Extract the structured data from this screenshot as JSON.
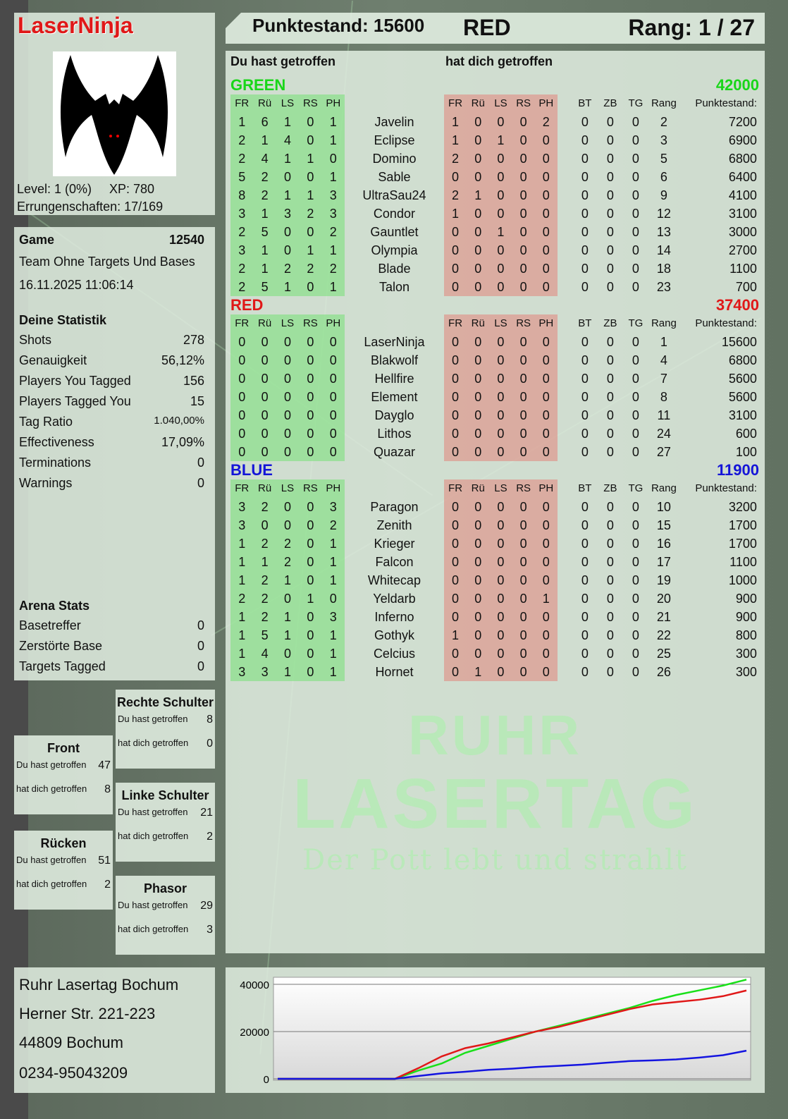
{
  "header": {
    "player": "LaserNinja",
    "score_label": "Punktestand: 15600",
    "team": "RED",
    "rank_label": "Rang: 1 / 27"
  },
  "profile": {
    "avatar": "bat-icon",
    "level": "Level: 1 (0%)",
    "xp": "XP: 780",
    "achievements": "Errungenschaften: 17/169"
  },
  "game": {
    "label": "Game",
    "id": "12540",
    "mode": "Team Ohne Targets Und Bases",
    "datetime": "16.11.2025 11:06:14"
  },
  "stats": {
    "title": "Deine Statistik",
    "items": [
      {
        "label": "Shots",
        "value": "278"
      },
      {
        "label": "Genauigkeit",
        "value": "56,12%"
      },
      {
        "label": "Players You Tagged",
        "value": "156"
      },
      {
        "label": "Players Tagged You",
        "value": "15"
      },
      {
        "label": "Tag Ratio",
        "value": "1.040,00%"
      },
      {
        "label": "Effectiveness",
        "value": "17,09%"
      },
      {
        "label": "Terminations",
        "value": "0"
      },
      {
        "label": "Warnings",
        "value": "0"
      }
    ]
  },
  "arena": {
    "title": "Arena Stats",
    "items": [
      {
        "label": "Basetreffer",
        "value": "0"
      },
      {
        "label": "Zerstörte Base",
        "value": "0"
      },
      {
        "label": "Targets Tagged",
        "value": "0"
      }
    ]
  },
  "hits": {
    "you_hit": "Du hast getroffen",
    "hit_you": "hat dich getroffen",
    "zones": [
      {
        "name": "Rechte Schulter",
        "you_hit": "8",
        "hit_you": "0"
      },
      {
        "name": "Front",
        "you_hit": "47",
        "hit_you": "8"
      },
      {
        "name": "Linke Schulter",
        "you_hit": "21",
        "hit_you": "2"
      },
      {
        "name": "Rücken",
        "you_hit": "51",
        "hit_you": "2"
      },
      {
        "name": "Phasor",
        "you_hit": "29",
        "hit_you": "3"
      }
    ]
  },
  "address": {
    "lines": [
      "Ruhr Lasertag Bochum",
      "Herner Str. 221-223",
      "44809 Bochum",
      "0234-95043209"
    ]
  },
  "logo": {
    "line1": "RUHR",
    "line2": "LASERTAG",
    "tagline": "Der Pott lebt und strahlt"
  },
  "table": {
    "you_hit_title": "Du hast getroffen",
    "hit_you_title": "hat dich getroffen",
    "columns": [
      "FR",
      "Rü",
      "LS",
      "RS",
      "PH",
      "",
      "FR",
      "Rü",
      "LS",
      "RS",
      "PH",
      "",
      "BT",
      "ZB",
      "TG",
      "Rang",
      "Punktestand:"
    ],
    "teams": [
      {
        "name": "GREEN",
        "score": "42000",
        "color": "#19d619",
        "rows": [
          [
            "1",
            "6",
            "1",
            "0",
            "1",
            "Javelin",
            "1",
            "0",
            "0",
            "0",
            "2",
            "0",
            "0",
            "0",
            "2",
            "7200"
          ],
          [
            "2",
            "1",
            "4",
            "0",
            "1",
            "Eclipse",
            "1",
            "0",
            "1",
            "0",
            "0",
            "0",
            "0",
            "0",
            "3",
            "6900"
          ],
          [
            "2",
            "4",
            "1",
            "1",
            "0",
            "Domino",
            "2",
            "0",
            "0",
            "0",
            "0",
            "0",
            "0",
            "0",
            "5",
            "6800"
          ],
          [
            "5",
            "2",
            "0",
            "0",
            "1",
            "Sable",
            "0",
            "0",
            "0",
            "0",
            "0",
            "0",
            "0",
            "0",
            "6",
            "6400"
          ],
          [
            "8",
            "2",
            "1",
            "1",
            "3",
            "UltraSau24",
            "2",
            "1",
            "0",
            "0",
            "0",
            "0",
            "0",
            "0",
            "9",
            "4100"
          ],
          [
            "3",
            "1",
            "3",
            "2",
            "3",
            "Condor",
            "1",
            "0",
            "0",
            "0",
            "0",
            "0",
            "0",
            "0",
            "12",
            "3100"
          ],
          [
            "2",
            "5",
            "0",
            "0",
            "2",
            "Gauntlet",
            "0",
            "0",
            "1",
            "0",
            "0",
            "0",
            "0",
            "0",
            "13",
            "3000"
          ],
          [
            "3",
            "1",
            "0",
            "1",
            "1",
            "Olympia",
            "0",
            "0",
            "0",
            "0",
            "0",
            "0",
            "0",
            "0",
            "14",
            "2700"
          ],
          [
            "2",
            "1",
            "2",
            "2",
            "2",
            "Blade",
            "0",
            "0",
            "0",
            "0",
            "0",
            "0",
            "0",
            "0",
            "18",
            "1100"
          ],
          [
            "2",
            "5",
            "1",
            "0",
            "1",
            "Talon",
            "0",
            "0",
            "0",
            "0",
            "0",
            "0",
            "0",
            "0",
            "23",
            "700"
          ]
        ]
      },
      {
        "name": "RED",
        "score": "37400",
        "color": "#e01818",
        "rows": [
          [
            "0",
            "0",
            "0",
            "0",
            "0",
            "LaserNinja",
            "0",
            "0",
            "0",
            "0",
            "0",
            "0",
            "0",
            "0",
            "1",
            "15600"
          ],
          [
            "0",
            "0",
            "0",
            "0",
            "0",
            "Blakwolf",
            "0",
            "0",
            "0",
            "0",
            "0",
            "0",
            "0",
            "0",
            "4",
            "6800"
          ],
          [
            "0",
            "0",
            "0",
            "0",
            "0",
            "Hellfire",
            "0",
            "0",
            "0",
            "0",
            "0",
            "0",
            "0",
            "0",
            "7",
            "5600"
          ],
          [
            "0",
            "0",
            "0",
            "0",
            "0",
            "Element",
            "0",
            "0",
            "0",
            "0",
            "0",
            "0",
            "0",
            "0",
            "8",
            "5600"
          ],
          [
            "0",
            "0",
            "0",
            "0",
            "0",
            "Dayglo",
            "0",
            "0",
            "0",
            "0",
            "0",
            "0",
            "0",
            "0",
            "11",
            "3100"
          ],
          [
            "0",
            "0",
            "0",
            "0",
            "0",
            "Lithos",
            "0",
            "0",
            "0",
            "0",
            "0",
            "0",
            "0",
            "0",
            "24",
            "600"
          ],
          [
            "0",
            "0",
            "0",
            "0",
            "0",
            "Quazar",
            "0",
            "0",
            "0",
            "0",
            "0",
            "0",
            "0",
            "0",
            "27",
            "100"
          ]
        ]
      },
      {
        "name": "BLUE",
        "score": "11900",
        "color": "#1414d8",
        "rows": [
          [
            "3",
            "2",
            "0",
            "0",
            "3",
            "Paragon",
            "0",
            "0",
            "0",
            "0",
            "0",
            "0",
            "0",
            "0",
            "10",
            "3200"
          ],
          [
            "3",
            "0",
            "0",
            "0",
            "2",
            "Zenith",
            "0",
            "0",
            "0",
            "0",
            "0",
            "0",
            "0",
            "0",
            "15",
            "1700"
          ],
          [
            "1",
            "2",
            "2",
            "0",
            "1",
            "Krieger",
            "0",
            "0",
            "0",
            "0",
            "0",
            "0",
            "0",
            "0",
            "16",
            "1700"
          ],
          [
            "1",
            "1",
            "2",
            "0",
            "1",
            "Falcon",
            "0",
            "0",
            "0",
            "0",
            "0",
            "0",
            "0",
            "0",
            "17",
            "1100"
          ],
          [
            "1",
            "2",
            "1",
            "0",
            "1",
            "Whitecap",
            "0",
            "0",
            "0",
            "0",
            "0",
            "0",
            "0",
            "0",
            "19",
            "1000"
          ],
          [
            "2",
            "2",
            "0",
            "1",
            "0",
            "Yeldarb",
            "0",
            "0",
            "0",
            "0",
            "1",
            "0",
            "0",
            "0",
            "20",
            "900"
          ],
          [
            "1",
            "2",
            "1",
            "0",
            "3",
            "Inferno",
            "0",
            "0",
            "0",
            "0",
            "0",
            "0",
            "0",
            "0",
            "21",
            "900"
          ],
          [
            "1",
            "5",
            "1",
            "0",
            "1",
            "Gothyk",
            "1",
            "0",
            "0",
            "0",
            "0",
            "0",
            "0",
            "0",
            "22",
            "800"
          ],
          [
            "1",
            "4",
            "0",
            "0",
            "1",
            "Celcius",
            "0",
            "0",
            "0",
            "0",
            "0",
            "0",
            "0",
            "0",
            "25",
            "300"
          ],
          [
            "3",
            "3",
            "1",
            "0",
            "1",
            "Hornet",
            "0",
            "1",
            "0",
            "0",
            "0",
            "0",
            "0",
            "0",
            "26",
            "300"
          ]
        ]
      }
    ]
  },
  "chart_data": {
    "type": "line",
    "title": "",
    "xlabel": "",
    "ylabel": "",
    "ylim": [
      0,
      43000
    ],
    "yticks": [
      "0",
      "20000",
      "40000"
    ],
    "grid": true,
    "series": [
      {
        "color": "#19e019",
        "values": [
          0,
          0,
          0,
          0,
          0,
          0,
          3500,
          6500,
          11000,
          14000,
          17000,
          20000,
          22500,
          25000,
          27500,
          30000,
          33000,
          35500,
          37500,
          39500,
          42000
        ]
      },
      {
        "color": "#e01818",
        "values": [
          0,
          0,
          0,
          0,
          0,
          0,
          4500,
          9500,
          13000,
          15000,
          17500,
          20000,
          22000,
          24500,
          27000,
          29500,
          31500,
          32500,
          33500,
          35000,
          37400
        ]
      },
      {
        "color": "#1414e0",
        "values": [
          0,
          0,
          0,
          0,
          0,
          0,
          1200,
          2300,
          3000,
          3800,
          4300,
          5000,
          5500,
          6000,
          6800,
          7500,
          7800,
          8200,
          9000,
          10000,
          11900
        ]
      }
    ]
  }
}
